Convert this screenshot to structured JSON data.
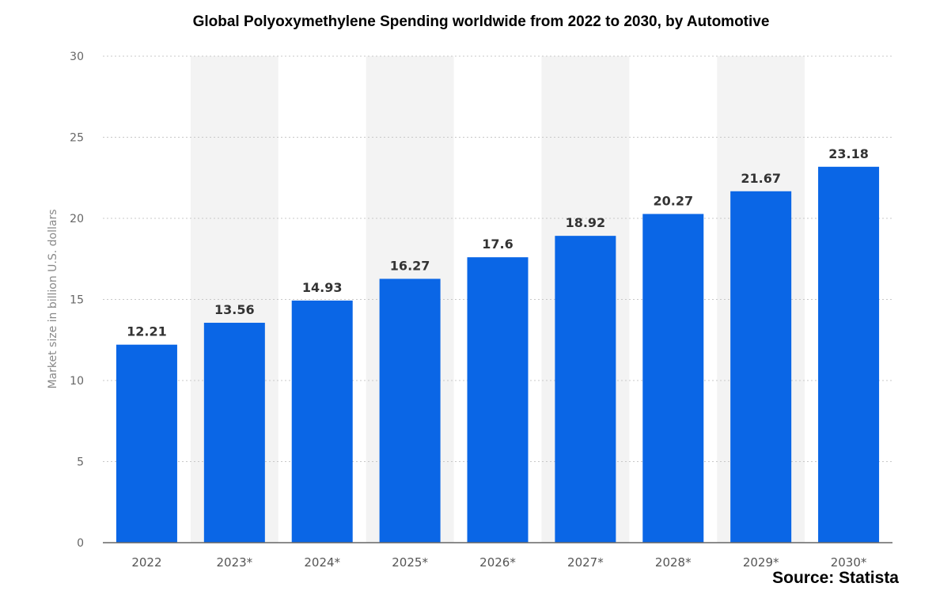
{
  "chart_data": {
    "type": "bar",
    "title": "Global Polyoxymethylene Spending worldwide from 2022 to 2030, by Automotive",
    "xlabel": "",
    "ylabel": "Market size in billion U.S. dollars",
    "categories": [
      "2022",
      "2023*",
      "2024*",
      "2025*",
      "2026*",
      "2027*",
      "2028*",
      "2029*",
      "2030*"
    ],
    "values": [
      12.21,
      13.56,
      14.93,
      16.27,
      17.6,
      18.92,
      20.27,
      21.67,
      23.18
    ],
    "value_labels": [
      "12.21",
      "13.56",
      "14.93",
      "16.27",
      "17.6",
      "18.92",
      "20.27",
      "21.67",
      "23.18"
    ],
    "ylim": [
      0,
      30
    ],
    "yticks": [
      "0",
      "5",
      "10",
      "15",
      "20",
      "25",
      "30"
    ],
    "grid": true,
    "bar_color": "#0a66e6",
    "source": "Source: Statista"
  }
}
